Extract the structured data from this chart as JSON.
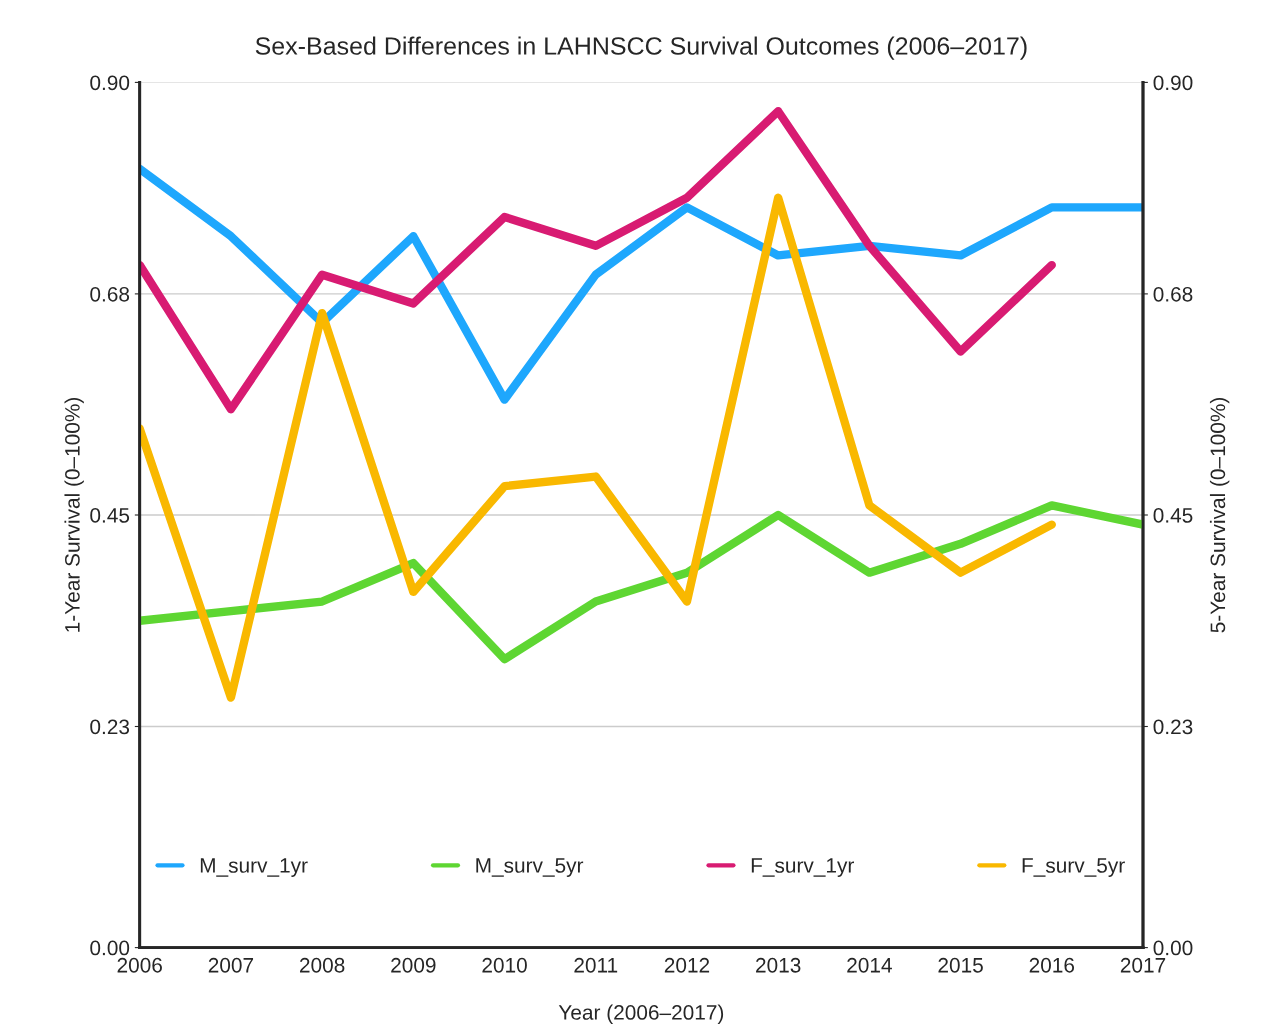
{
  "chart_data": {
    "type": "line",
    "title": "Sex-Based Differences in LAHNSCC Survival Outcomes (2006–2017)",
    "xlabel": "Year (2006–2017)",
    "ylabel": "1-Year Survival (0–100%)",
    "y2label": "5-Year Survival (0–100%)",
    "x": [
      2006,
      2007,
      2008,
      2009,
      2010,
      2011,
      2012,
      2013,
      2014,
      2015,
      2016,
      2017
    ],
    "xlim": [
      2006,
      2017
    ],
    "xticks": [
      2006,
      2007,
      2008,
      2009,
      2010,
      2011,
      2012,
      2013,
      2014,
      2015,
      2016,
      2017
    ],
    "ylim": [
      0,
      0.9
    ],
    "yticks": [
      {
        "value": 0,
        "label": "0.00"
      },
      0.23,
      0.45,
      0.68,
      {
        "value": 0.9,
        "label": "0.90"
      }
    ],
    "y2lim": [
      0,
      0.9
    ],
    "y2ticks": [
      {
        "value": 0,
        "label": "0.00"
      },
      0.23,
      0.45,
      0.68,
      {
        "value": 0.9,
        "label": "0.90"
      }
    ],
    "grid": "y",
    "legend": "bottom",
    "line_style": "solid",
    "marker": "none",
    "series": [
      {
        "name": "M_surv_1yr",
        "color": "#1ea7fd",
        "values": [
          0.81,
          0.74,
          0.65,
          0.74,
          0.57,
          0.7,
          0.77,
          0.72,
          0.73,
          0.72,
          0.77,
          0.77
        ]
      },
      {
        "name": "M_surv_5yr",
        "color": "#5ed632",
        "axis": "y2",
        "values": [
          0.34,
          0.35,
          0.36,
          0.4,
          0.3,
          0.36,
          0.39,
          0.45,
          0.39,
          0.42,
          0.46,
          0.44
        ]
      },
      {
        "name": "F_surv_1yr",
        "color": "#d81b72",
        "values": [
          0.71,
          0.56,
          0.7,
          0.67,
          0.76,
          0.73,
          0.78,
          0.87,
          0.73,
          0.62,
          0.71,
          null
        ]
      },
      {
        "name": "F_surv_5yr",
        "color": "#f9b800",
        "axis": "y2",
        "values": [
          0.54,
          0.26,
          0.66,
          0.37,
          0.48,
          0.49,
          0.36,
          0.78,
          0.46,
          0.39,
          0.44,
          null
        ]
      }
    ]
  }
}
